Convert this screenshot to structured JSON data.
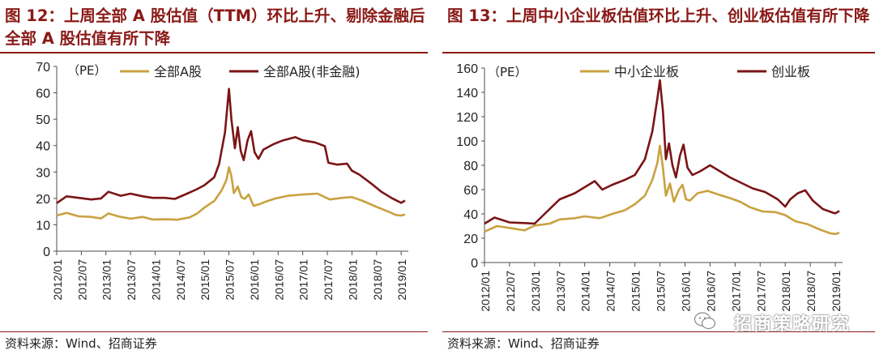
{
  "charts": [
    {
      "title": "图 12：上周全部 A 股估值（TTM）环比上升、剔除金融后全部 A 股估值有所下降",
      "source": "资料来源：Wind、招商证券"
    },
    {
      "title": "图 13：上周中小企业板估值环比上升、创业板估值有所下降",
      "source": "资料来源：Wind、招商证券",
      "watermark": "招商策略研究"
    }
  ],
  "colors": {
    "gold": "#c9a13f",
    "maroon": "#7a1416",
    "title": "#8a1a17",
    "axis": "#4d4d4d"
  },
  "chart_data": [
    {
      "type": "line",
      "title": "图 12：上周全部 A 股估值（TTM）环比上升、剔除金融后全部 A 股估值有所下降",
      "ylabel": "（PE）",
      "ylim": [
        0,
        70
      ],
      "yticks": [
        0,
        10,
        20,
        30,
        40,
        50,
        60,
        70
      ],
      "x_tick_labels": [
        "2012/01",
        "2012/07",
        "2013/01",
        "2013/07",
        "2014/01",
        "2014/07",
        "2015/01",
        "2015/07",
        "2016/01",
        "2016/07",
        "2017/01",
        "2017/07",
        "2018/01",
        "2018/07",
        "2019/01"
      ],
      "legend": "top",
      "series": [
        {
          "name": "全部A股",
          "color": "#c9a13f",
          "points": [
            [
              2012.0,
              13.5
            ],
            [
              2012.2,
              14.5
            ],
            [
              2012.45,
              13.2
            ],
            [
              2012.7,
              13.0
            ],
            [
              2012.9,
              12.4
            ],
            [
              2013.05,
              14.3
            ],
            [
              2013.25,
              13.2
            ],
            [
              2013.5,
              12.3
            ],
            [
              2013.75,
              13.0
            ],
            [
              2013.95,
              12.0
            ],
            [
              2014.2,
              12.1
            ],
            [
              2014.45,
              11.9
            ],
            [
              2014.7,
              12.8
            ],
            [
              2014.85,
              14.2
            ],
            [
              2015.0,
              16.5
            ],
            [
              2015.2,
              19.0
            ],
            [
              2015.35,
              23.0
            ],
            [
              2015.45,
              27.0
            ],
            [
              2015.5,
              31.8
            ],
            [
              2015.55,
              28.5
            ],
            [
              2015.6,
              22.0
            ],
            [
              2015.68,
              24.5
            ],
            [
              2015.75,
              20.5
            ],
            [
              2015.82,
              19.8
            ],
            [
              2015.9,
              21.5
            ],
            [
              2016.0,
              17.2
            ],
            [
              2016.12,
              17.8
            ],
            [
              2016.25,
              18.8
            ],
            [
              2016.45,
              20.0
            ],
            [
              2016.7,
              21.0
            ],
            [
              2017.0,
              21.5
            ],
            [
              2017.3,
              21.8
            ],
            [
              2017.55,
              19.6
            ],
            [
              2017.8,
              20.2
            ],
            [
              2018.0,
              20.5
            ],
            [
              2018.2,
              19.2
            ],
            [
              2018.45,
              17.2
            ],
            [
              2018.7,
              15.3
            ],
            [
              2018.9,
              13.7
            ],
            [
              2019.0,
              13.5
            ],
            [
              2019.08,
              13.9
            ]
          ]
        },
        {
          "name": "全部A股(非金融)",
          "color": "#7a1416",
          "points": [
            [
              2012.0,
              18.2
            ],
            [
              2012.2,
              20.8
            ],
            [
              2012.45,
              20.2
            ],
            [
              2012.7,
              19.6
            ],
            [
              2012.9,
              20.0
            ],
            [
              2013.05,
              22.5
            ],
            [
              2013.3,
              21.0
            ],
            [
              2013.5,
              21.8
            ],
            [
              2013.75,
              20.8
            ],
            [
              2013.95,
              20.2
            ],
            [
              2014.2,
              20.2
            ],
            [
              2014.4,
              19.8
            ],
            [
              2014.65,
              21.8
            ],
            [
              2014.85,
              23.5
            ],
            [
              2015.0,
              25.0
            ],
            [
              2015.2,
              28.0
            ],
            [
              2015.3,
              33.0
            ],
            [
              2015.42,
              45.0
            ],
            [
              2015.5,
              61.5
            ],
            [
              2015.55,
              50.0
            ],
            [
              2015.62,
              39.0
            ],
            [
              2015.68,
              47.0
            ],
            [
              2015.74,
              38.0
            ],
            [
              2015.8,
              34.5
            ],
            [
              2015.88,
              42.0
            ],
            [
              2015.95,
              45.5
            ],
            [
              2016.02,
              37.5
            ],
            [
              2016.1,
              35.0
            ],
            [
              2016.2,
              38.5
            ],
            [
              2016.4,
              40.5
            ],
            [
              2016.6,
              42.0
            ],
            [
              2016.85,
              43.2
            ],
            [
              2017.0,
              42.0
            ],
            [
              2017.25,
              41.2
            ],
            [
              2017.45,
              39.8
            ],
            [
              2017.52,
              33.5
            ],
            [
              2017.7,
              32.8
            ],
            [
              2017.9,
              33.2
            ],
            [
              2018.0,
              30.5
            ],
            [
              2018.15,
              29.0
            ],
            [
              2018.4,
              25.5
            ],
            [
              2018.6,
              22.5
            ],
            [
              2018.8,
              20.2
            ],
            [
              2018.95,
              18.8
            ],
            [
              2019.0,
              18.3
            ],
            [
              2019.08,
              19.2
            ]
          ]
        }
      ]
    },
    {
      "type": "line",
      "title": "图 13：上周中小企业板估值环比上升、创业板估值有所下降",
      "ylabel": "（PE）",
      "ylim": [
        0,
        160
      ],
      "yticks": [
        0,
        20,
        40,
        60,
        80,
        100,
        120,
        140,
        160
      ],
      "x_tick_labels": [
        "2012/01",
        "2012/07",
        "2013/01",
        "2013/07",
        "2014/01",
        "2014/07",
        "2015/01",
        "2015/07",
        "2016/01",
        "2016/07",
        "2017/01",
        "2017/07",
        "2018/01",
        "2018/07",
        "2019/01"
      ],
      "legend": "top",
      "series": [
        {
          "name": "中小企业板",
          "color": "#c9a13f",
          "points": [
            [
              2012.0,
              25.5
            ],
            [
              2012.25,
              30.0
            ],
            [
              2012.5,
              28.5
            ],
            [
              2012.8,
              26.5
            ],
            [
              2013.0,
              30.5
            ],
            [
              2013.3,
              32.0
            ],
            [
              2013.5,
              35.5
            ],
            [
              2013.8,
              36.5
            ],
            [
              2014.0,
              38.0
            ],
            [
              2014.3,
              36.5
            ],
            [
              2014.55,
              40.0
            ],
            [
              2014.8,
              43.0
            ],
            [
              2015.0,
              48.0
            ],
            [
              2015.2,
              55.0
            ],
            [
              2015.35,
              68.0
            ],
            [
              2015.45,
              82.0
            ],
            [
              2015.5,
              96.0
            ],
            [
              2015.56,
              78.0
            ],
            [
              2015.62,
              55.0
            ],
            [
              2015.7,
              65.0
            ],
            [
              2015.78,
              50.0
            ],
            [
              2015.88,
              60.0
            ],
            [
              2015.95,
              64.0
            ],
            [
              2016.02,
              52.0
            ],
            [
              2016.1,
              51.0
            ],
            [
              2016.25,
              57.0
            ],
            [
              2016.45,
              59.0
            ],
            [
              2016.7,
              55.5
            ],
            [
              2016.9,
              53.0
            ],
            [
              2017.1,
              50.0
            ],
            [
              2017.3,
              45.5
            ],
            [
              2017.55,
              42.0
            ],
            [
              2017.8,
              41.5
            ],
            [
              2018.0,
              39.0
            ],
            [
              2018.2,
              34.0
            ],
            [
              2018.45,
              31.5
            ],
            [
              2018.7,
              27.0
            ],
            [
              2018.9,
              24.0
            ],
            [
              2019.0,
              23.5
            ],
            [
              2019.08,
              24.5
            ]
          ]
        },
        {
          "name": "创业板",
          "color": "#7a1416",
          "points": [
            [
              2012.0,
              32.0
            ],
            [
              2012.2,
              37.0
            ],
            [
              2012.5,
              33.0
            ],
            [
              2012.8,
              32.5
            ],
            [
              2013.0,
              32.0
            ],
            [
              2013.25,
              42.0
            ],
            [
              2013.5,
              52.0
            ],
            [
              2013.8,
              57.0
            ],
            [
              2014.0,
              62.0
            ],
            [
              2014.2,
              67.0
            ],
            [
              2014.35,
              60.0
            ],
            [
              2014.55,
              64.0
            ],
            [
              2014.8,
              68.0
            ],
            [
              2015.0,
              72.0
            ],
            [
              2015.2,
              85.0
            ],
            [
              2015.35,
              108.0
            ],
            [
              2015.45,
              135.0
            ],
            [
              2015.5,
              150.0
            ],
            [
              2015.56,
              125.0
            ],
            [
              2015.62,
              85.0
            ],
            [
              2015.68,
              98.0
            ],
            [
              2015.75,
              80.0
            ],
            [
              2015.82,
              70.0
            ],
            [
              2015.9,
              88.0
            ],
            [
              2015.97,
              97.0
            ],
            [
              2016.05,
              78.0
            ],
            [
              2016.15,
              72.0
            ],
            [
              2016.3,
              75.0
            ],
            [
              2016.5,
              80.0
            ],
            [
              2016.7,
              75.0
            ],
            [
              2016.9,
              70.0
            ],
            [
              2017.1,
              66.0
            ],
            [
              2017.35,
              61.0
            ],
            [
              2017.6,
              58.0
            ],
            [
              2017.85,
              52.0
            ],
            [
              2018.0,
              46.0
            ],
            [
              2018.1,
              52.0
            ],
            [
              2018.25,
              57.0
            ],
            [
              2018.4,
              59.5
            ],
            [
              2018.55,
              51.0
            ],
            [
              2018.75,
              44.0
            ],
            [
              2018.95,
              41.0
            ],
            [
              2019.0,
              40.5
            ],
            [
              2019.08,
              42.5
            ]
          ]
        }
      ]
    }
  ]
}
